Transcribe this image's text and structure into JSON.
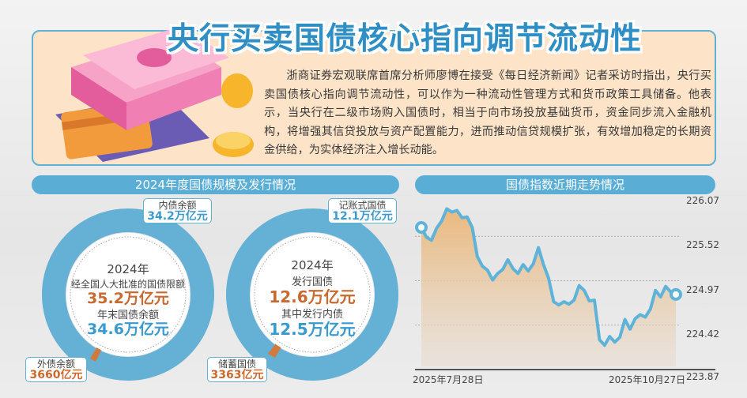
{
  "header": {
    "title": "央行买卖国债核心指向调节流动性",
    "body": "浙商证券宏观联席首席分析师廖博在接受《每日经济新闻》记者采访时指出，央行买卖国债核心指向调节流动性，可以作为一种流动性管理方式和货币政策工具储备。他表示，当央行在二级市场购入国债时，相当于向市场投放基础货币，资金同步流入金融机构，将增强其信贷投放与资产配置能力，进而推动信贷规模扩张，有效增加稳定的长期资金供给，为实体经济注入增长动能。"
  },
  "left_section": {
    "title": "2024年度国债规模及发行情况",
    "donut1": {
      "year": "2024年",
      "line1": "经全国人大批准的国债限额",
      "value1": "35.2万亿元",
      "line2": "年末国债余额",
      "value2": "34.6万亿元",
      "label_a": {
        "name": "内债余额",
        "value": "34.2万亿元"
      },
      "label_b": {
        "name": "外债余额",
        "value": "3660亿元"
      }
    },
    "donut2": {
      "year": "2024年",
      "line1": "发行国债",
      "value1": "12.6万亿元",
      "line2": "其中发行内债",
      "value2": "12.5万亿元",
      "label_a": {
        "name": "记账式国债",
        "value": "12.1万亿元"
      },
      "label_b": {
        "name": "储蓄国债",
        "value": "3363亿元"
      }
    }
  },
  "colors": {
    "blue": "#5aaed5",
    "orange": "#c9692f",
    "panel": "#fde3c8"
  },
  "chart_data": {
    "type": "area",
    "title": "国债指数近期走势情况",
    "x_start_label": "2025年7月28日",
    "x_end_label": "2025年10月27日",
    "yticks": [
      "226.07",
      "225.52",
      "224.97",
      "224.42",
      "223.87"
    ],
    "ylim": [
      223.87,
      226.07
    ],
    "grid": true,
    "values": [
      225.63,
      225.51,
      225.47,
      225.62,
      225.71,
      225.86,
      225.82,
      225.84,
      225.75,
      225.76,
      225.63,
      225.27,
      225.15,
      225.1,
      224.98,
      225.06,
      225.11,
      225.23,
      225.12,
      225.06,
      225.17,
      225.09,
      225.18,
      225.38,
      225.17,
      225.0,
      224.71,
      224.67,
      224.71,
      224.68,
      224.73,
      224.91,
      224.85,
      224.72,
      224.73,
      224.24,
      224.17,
      224.28,
      224.21,
      224.27,
      224.49,
      224.37,
      224.5,
      224.55,
      224.52,
      224.62,
      224.85,
      224.77,
      224.9,
      224.83,
      224.8
    ]
  }
}
